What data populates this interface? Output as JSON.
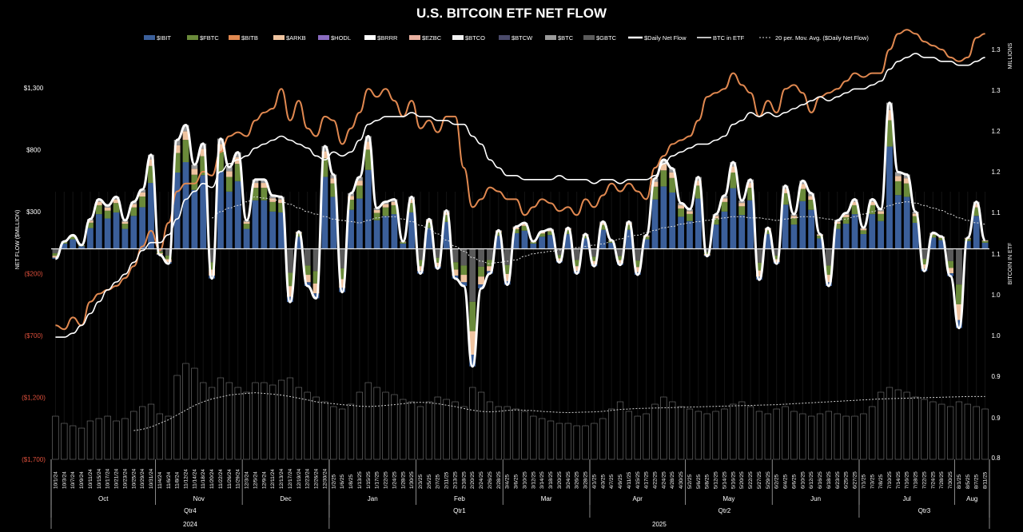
{
  "chart_data": {
    "type": "bar",
    "title": "U.S. BITCOIN ETF NET FLOW",
    "ylabel": "NET FLOW ($MILLION)",
    "y2label": "BITCOIN IN ETF",
    "y2unit": "MILLIONS",
    "ylim": [
      -1700,
      1300
    ],
    "y2lim": [
      0.8,
      1.3
    ],
    "yticks": [
      "$1,300",
      "$800",
      "$300",
      "($200)",
      "($700)",
      "($1,200)",
      "($1,700)"
    ],
    "y2ticks": [
      "1.3",
      "1.3",
      "1.2",
      "1.2",
      "1.1",
      "1.1",
      "1.0",
      "1.0",
      "0.9",
      "0.9",
      "0.8"
    ],
    "legend": [
      "$IBIT",
      "$FBTC",
      "$BITB",
      "$ARKB",
      "$HODL",
      "$BRRR",
      "$EZBC",
      "$BTCO",
      "$BTCW",
      "$BTC",
      "$GBTC",
      "$Daily Net Flow",
      "BTC in ETF",
      "20 per. Mov. Avg. ($Daily Net Flow)"
    ],
    "legend_colors": [
      "#3b5f9a",
      "#6a8a3a",
      "#e08850",
      "#f0c4a0",
      "#8a6cc0",
      "#ffffff",
      "#e8b0a0",
      "#f2f2f2",
      "#4a4a6a",
      "#9a9a9a",
      "#5a5a5a",
      "#ffffff",
      "#ffffff",
      "#dddddd"
    ],
    "x": [
      "10/1/24",
      "10/3/24",
      "10/7/24",
      "10/9/24",
      "10/11/24",
      "10/15/24",
      "10/17/24",
      "10/21/24",
      "10/23/24",
      "10/25/24",
      "10/29/24",
      "10/31/24",
      "11/4/24",
      "11/6/24",
      "11/8/24",
      "11/12/24",
      "11/14/24",
      "11/18/24",
      "11/20/24",
      "11/22/24",
      "11/26/24",
      "11/29/24",
      "12/3/24",
      "12/5/24",
      "12/9/24",
      "12/11/24",
      "12/13/24",
      "12/17/24",
      "12/19/24",
      "12/23/24",
      "12/26/24",
      "12/30/24",
      "1/2/25",
      "1/6/25",
      "1/8/25",
      "1/13/25",
      "1/15/25",
      "1/17/25",
      "1/22/25",
      "1/24/25",
      "1/28/25",
      "1/30/25",
      "2/3/25",
      "2/5/25",
      "2/7/25",
      "2/11/25",
      "2/13/25",
      "2/18/25",
      "2/20/25",
      "2/24/25",
      "2/26/25",
      "2/28/25",
      "3/4/25",
      "3/6/25",
      "3/10/25",
      "3/12/25",
      "3/14/25",
      "3/18/25",
      "3/20/25",
      "3/24/25",
      "3/26/25",
      "3/28/25",
      "4/1/25",
      "4/3/25",
      "4/7/25",
      "4/9/25",
      "4/11/25",
      "4/15/25",
      "4/17/25",
      "4/22/25",
      "4/24/25",
      "4/28/25",
      "4/30/25",
      "5/2/25",
      "5/6/25",
      "5/8/25",
      "5/12/25",
      "5/14/25",
      "5/16/25",
      "5/20/25",
      "5/22/25",
      "5/27/25",
      "5/29/25",
      "6/2/25",
      "6/4/25",
      "6/6/25",
      "6/10/25",
      "6/12/25",
      "6/16/25",
      "6/18/25",
      "6/23/25",
      "6/25/25",
      "6/27/25",
      "7/1/25",
      "7/3/25",
      "7/8/25",
      "7/10/25",
      "7/14/25",
      "7/16/25",
      "7/18/25",
      "7/22/25",
      "7/24/25",
      "7/28/25",
      "7/30/25",
      "8/1/25",
      "8/5/25",
      "8/7/25",
      "8/11/25"
    ],
    "months": [
      {
        "label": "Oct",
        "from": 0,
        "to": 12
      },
      {
        "label": "Nov",
        "from": 12,
        "to": 22
      },
      {
        "label": "Dec",
        "from": 22,
        "to": 32
      },
      {
        "label": "Jan",
        "from": 32,
        "to": 42
      },
      {
        "label": "Feb",
        "from": 42,
        "to": 52
      },
      {
        "label": "Mar",
        "from": 52,
        "to": 62
      },
      {
        "label": "Apr",
        "from": 62,
        "to": 73
      },
      {
        "label": "May",
        "from": 73,
        "to": 83
      },
      {
        "label": "Jun",
        "from": 83,
        "to": 93
      },
      {
        "label": "Jul",
        "from": 93,
        "to": 104
      },
      {
        "label": "Aug",
        "from": 104,
        "to": 108
      }
    ],
    "quarters": [
      {
        "label": "Qtr4",
        "from": 0,
        "to": 32
      },
      {
        "label": "Qtr1",
        "from": 32,
        "to": 62
      },
      {
        "label": "Qtr2",
        "from": 62,
        "to": 93
      },
      {
        "label": "Qtr3",
        "from": 93,
        "to": 108
      }
    ],
    "years": [
      {
        "label": "2024",
        "from": 0,
        "to": 32
      },
      {
        "label": "2025",
        "from": 32,
        "to": 108
      }
    ],
    "daily_net_flow": [
      -80,
      60,
      110,
      30,
      240,
      400,
      350,
      420,
      230,
      380,
      480,
      760,
      -50,
      -120,
      880,
      1000,
      680,
      850,
      -240,
      890,
      660,
      780,
      230,
      560,
      560,
      430,
      420,
      -430,
      140,
      -300,
      -400,
      830,
      600,
      -350,
      450,
      580,
      910,
      330,
      380,
      400,
      60,
      420,
      -200,
      240,
      -160,
      310,
      -240,
      -300,
      -950,
      -320,
      -200,
      150,
      -290,
      180,
      210,
      60,
      140,
      160,
      -110,
      170,
      -200,
      120,
      -140,
      220,
      70,
      -130,
      220,
      -210,
      110,
      570,
      720,
      650,
      370,
      320,
      580,
      -60,
      280,
      430,
      700,
      390,
      560,
      -250,
      170,
      -120,
      510,
      280,
      550,
      450,
      120,
      -300,
      230,
      290,
      400,
      170,
      400,
      320,
      1180,
      620,
      600,
      300,
      -180,
      130,
      100,
      -220,
      -640,
      90,
      380,
      70
    ],
    "btc_in_etf": [
      0.955,
      0.955,
      0.96,
      0.97,
      0.985,
      1.0,
      1.015,
      1.025,
      1.035,
      1.05,
      1.065,
      1.075,
      1.075,
      1.085,
      1.105,
      1.13,
      1.14,
      1.15,
      1.145,
      1.165,
      1.175,
      1.18,
      1.185,
      1.195,
      1.2,
      1.205,
      1.21,
      1.205,
      1.2,
      1.195,
      1.185,
      1.18,
      1.19,
      1.185,
      1.19,
      1.205,
      1.225,
      1.23,
      1.235,
      1.235,
      1.235,
      1.24,
      1.235,
      1.235,
      1.23,
      1.23,
      1.225,
      1.225,
      1.21,
      1.2,
      1.18,
      1.17,
      1.16,
      1.16,
      1.155,
      1.155,
      1.155,
      1.155,
      1.16,
      1.155,
      1.155,
      1.155,
      1.15,
      1.155,
      1.155,
      1.15,
      1.155,
      1.155,
      1.155,
      1.16,
      1.175,
      1.185,
      1.19,
      1.195,
      1.2,
      1.2,
      1.205,
      1.21,
      1.225,
      1.23,
      1.24,
      1.235,
      1.24,
      1.235,
      1.24,
      1.245,
      1.25,
      1.255,
      1.26,
      1.255,
      1.26,
      1.265,
      1.27,
      1.27,
      1.275,
      1.28,
      1.295,
      1.305,
      1.31,
      1.315,
      1.31,
      1.31,
      1.305,
      1.305,
      1.3,
      1.3,
      1.305,
      1.31
    ],
    "btc_orange": [
      0.97,
      0.965,
      0.98,
      0.97,
      1.0,
      1.01,
      1.015,
      1.02,
      1.03,
      1.045,
      1.07,
      1.09,
      1.065,
      1.1,
      1.14,
      1.15,
      1.15,
      1.165,
      1.16,
      1.19,
      1.21,
      1.215,
      1.21,
      1.23,
      1.24,
      1.245,
      1.27,
      1.23,
      1.255,
      1.22,
      1.21,
      1.235,
      1.23,
      1.2,
      1.22,
      1.24,
      1.27,
      1.26,
      1.27,
      1.255,
      1.235,
      1.255,
      1.22,
      1.23,
      1.215,
      1.235,
      1.235,
      1.17,
      1.12,
      1.13,
      1.145,
      1.14,
      1.13,
      1.13,
      1.11,
      1.12,
      1.13,
      1.125,
      1.115,
      1.12,
      1.11,
      1.13,
      1.12,
      1.135,
      1.15,
      1.14,
      1.15,
      1.14,
      1.13,
      1.17,
      1.185,
      1.2,
      1.205,
      1.21,
      1.23,
      1.26,
      1.265,
      1.27,
      1.29,
      1.275,
      1.265,
      1.235,
      1.255,
      1.24,
      1.27,
      1.275,
      1.265,
      1.24,
      1.26,
      1.265,
      1.27,
      1.28,
      1.29,
      1.285,
      1.29,
      1.29,
      1.32,
      1.34,
      1.345,
      1.34,
      1.33,
      1.325,
      1.32,
      1.31,
      1.305,
      1.31,
      1.335,
      1.34
    ],
    "moving_avg": [
      null,
      null,
      null,
      null,
      null,
      null,
      null,
      null,
      null,
      null,
      null,
      null,
      null,
      null,
      null,
      null,
      null,
      null,
      250,
      300,
      330,
      350,
      380,
      420,
      410,
      400,
      380,
      360,
      330,
      300,
      280,
      260,
      240,
      230,
      220,
      210,
      230,
      250,
      260,
      260,
      240,
      220,
      190,
      160,
      120,
      70,
      20,
      -20,
      -70,
      -100,
      -120,
      -110,
      -100,
      -90,
      -60,
      -40,
      -30,
      -20,
      -10,
      0,
      10,
      20,
      30,
      40,
      60,
      80,
      100,
      110,
      130,
      150,
      170,
      180,
      200,
      210,
      220,
      230,
      240,
      250,
      260,
      260,
      250,
      250,
      240,
      230,
      240,
      250,
      260,
      260,
      250,
      240,
      230,
      240,
      260,
      280,
      300,
      320,
      350,
      370,
      380,
      370,
      350,
      330,
      310,
      280,
      250,
      230,
      210,
      200
    ],
    "volume": [
      180,
      150,
      140,
      130,
      160,
      170,
      180,
      160,
      170,
      200,
      220,
      230,
      190,
      180,
      350,
      400,
      380,
      320,
      300,
      340,
      320,
      300,
      280,
      320,
      320,
      310,
      330,
      340,
      300,
      280,
      260,
      240,
      220,
      210,
      230,
      280,
      320,
      300,
      280,
      270,
      250,
      240,
      220,
      240,
      260,
      250,
      240,
      220,
      300,
      280,
      240,
      220,
      220,
      210,
      200,
      180,
      170,
      160,
      150,
      150,
      140,
      140,
      150,
      170,
      210,
      240,
      200,
      180,
      190,
      230,
      260,
      240,
      220,
      210,
      200,
      190,
      200,
      210,
      230,
      240,
      220,
      200,
      190,
      210,
      220,
      200,
      190,
      180,
      190,
      200,
      190,
      180,
      180,
      190,
      220,
      280,
      300,
      290,
      280,
      260,
      250,
      240,
      230,
      220,
      240,
      230,
      220,
      210
    ],
    "vol_ma": [
      null,
      null,
      null,
      null,
      null,
      null,
      null,
      null,
      null,
      120,
      125,
      135,
      150,
      165,
      185,
      205,
      225,
      240,
      252,
      260,
      268,
      272,
      275,
      278,
      275,
      272,
      268,
      262,
      255,
      248,
      240,
      235,
      232,
      228,
      225,
      222,
      220,
      222,
      225,
      228,
      232,
      236,
      238,
      236,
      232,
      226,
      220,
      212,
      205,
      200,
      198,
      200,
      204,
      206,
      205,
      203,
      200,
      198,
      196,
      195,
      196,
      197,
      198,
      200,
      204,
      208,
      210,
      212,
      213,
      214,
      215,
      216,
      217,
      218,
      219,
      220,
      221,
      222,
      223,
      224,
      225,
      226,
      227,
      228,
      230,
      232,
      234,
      236,
      238,
      240,
      242,
      244,
      246,
      248,
      250,
      252,
      253,
      254,
      255,
      256,
      257,
      258,
      259,
      260,
      261,
      262,
      262,
      262
    ]
  }
}
